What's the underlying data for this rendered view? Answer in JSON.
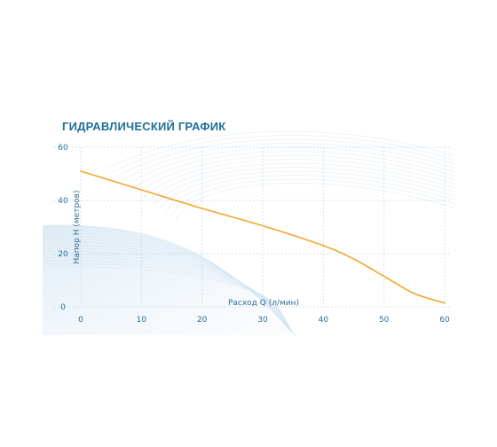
{
  "chart_data": {
    "type": "line",
    "title": "ГИДРАВЛИЧЕСКИЙ ГРАФИК",
    "xlabel": "Расход Q (л/мин)",
    "ylabel": "Напор Н (метров)",
    "xlim": [
      0,
      60
    ],
    "ylim": [
      0,
      60
    ],
    "x_ticks": [
      0,
      10,
      20,
      30,
      40,
      50,
      60
    ],
    "y_ticks": [
      0,
      20,
      40,
      60
    ],
    "grid": true,
    "series": [
      {
        "color": "#f0a830",
        "points": [
          {
            "x": 0,
            "y": 51
          },
          {
            "x": 10,
            "y": 44
          },
          {
            "x": 20,
            "y": 37
          },
          {
            "x": 30,
            "y": 30.5
          },
          {
            "x": 40,
            "y": 23
          },
          {
            "x": 45,
            "y": 18
          },
          {
            "x": 50,
            "y": 11.5
          },
          {
            "x": 55,
            "y": 5
          },
          {
            "x": 60,
            "y": 1.5
          }
        ]
      }
    ]
  },
  "colors": {
    "accent": "#1f6f97",
    "text": "#2e6f95",
    "curve": "#f0a830",
    "grid": "#c6d9e8"
  }
}
